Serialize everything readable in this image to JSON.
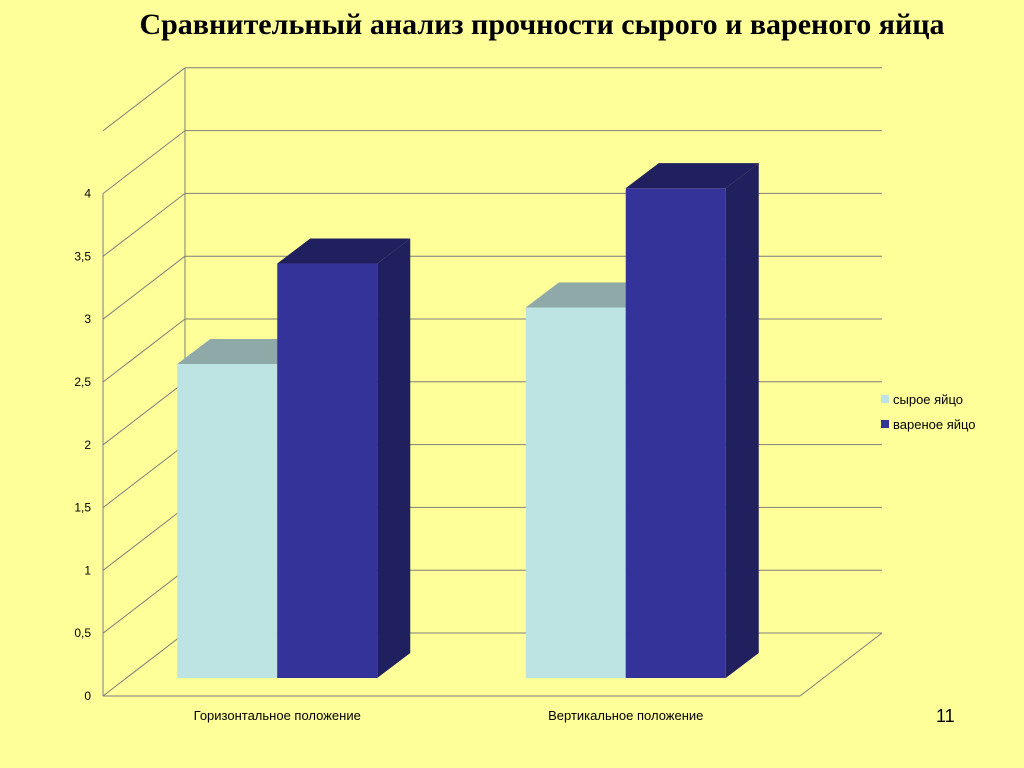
{
  "slide": {
    "title": "Сравнительный анализ прочности сырого и вареного яйца",
    "number": "11"
  },
  "chart_data": {
    "type": "bar",
    "subtype": "3d-clustered-column",
    "categories": [
      "Горизонтальное положение",
      "Вертикальное положение"
    ],
    "series": [
      {
        "name": "сырое яйцо",
        "values": [
          2.5,
          2.95
        ],
        "color": "#BDE3E3"
      },
      {
        "name": "вареное яйцо",
        "values": [
          3.3,
          3.9
        ],
        "color": "#333399"
      }
    ],
    "y_ticks": [
      "0",
      "0,5",
      "1",
      "1,5",
      "2",
      "2,5",
      "3",
      "3,5",
      "4"
    ],
    "ylim": [
      0,
      4.5
    ],
    "grid": true,
    "legend_position": "right"
  },
  "colors": {
    "background": "#FFFF99",
    "raw_egg": "#BDE3E3",
    "boiled_egg": "#333399"
  }
}
